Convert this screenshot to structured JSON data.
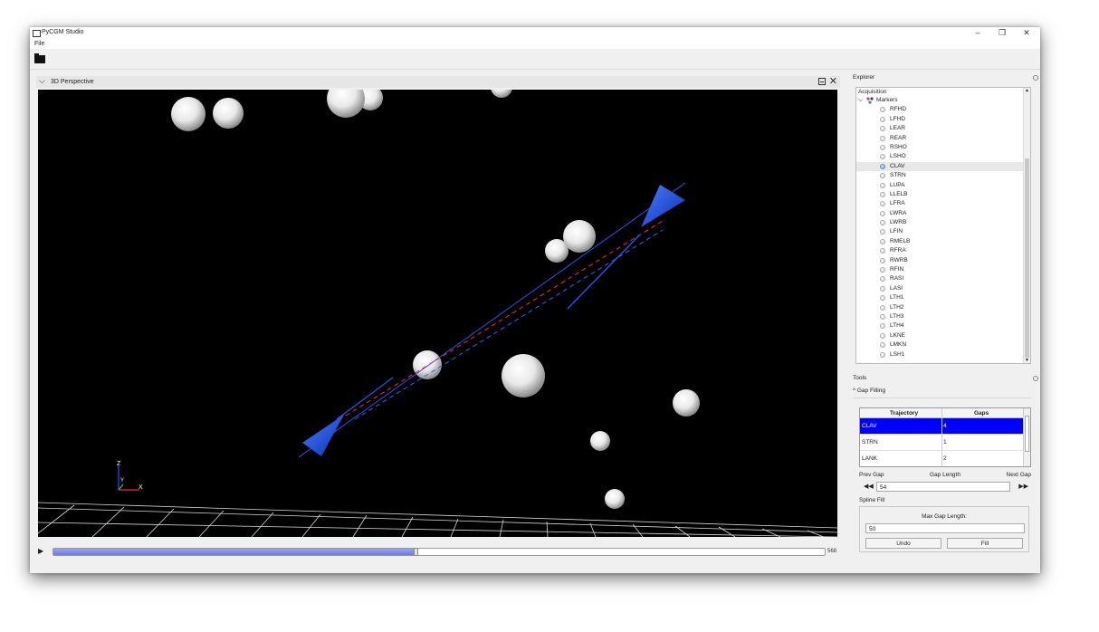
{
  "window": {
    "title": "PyCGM Studio",
    "controls": [
      "–",
      "❐",
      "✕"
    ]
  },
  "menu": {
    "file": "File"
  },
  "toolbar": {
    "open_icon": "folder-open-icon"
  },
  "viewport": {
    "title": "3D Perspective",
    "axes": {
      "z": "Z",
      "y": "Y",
      "x": "X"
    }
  },
  "playback": {
    "frame_count": "568",
    "progress": 0.47
  },
  "explorer": {
    "title": "Explorer",
    "root": "Acquisition",
    "group": "Markers",
    "selected": "CLAV",
    "markers": [
      "RFHD",
      "LFHD",
      "LEAR",
      "REAR",
      "RSHO",
      "LSHO",
      "CLAV",
      "STRN",
      "LUPA",
      "LLELB",
      "LFRA",
      "LWRA",
      "LWRB",
      "LFIN",
      "RMELB",
      "RFRA",
      "RWRB",
      "RFIN",
      "RASI",
      "LASI",
      "LTH1",
      "LTH2",
      "LTH3",
      "LTH4",
      "LKNE",
      "LMKN",
      "LSH1"
    ]
  },
  "tools": {
    "title": "Tools",
    "gap_filling": "Gap Filling",
    "table": {
      "headers": [
        "Trajectory",
        "Gaps"
      ],
      "rows": [
        {
          "trajectory": "CLAV",
          "gaps": "4",
          "selected": true
        },
        {
          "trajectory": "STRN",
          "gaps": "1",
          "selected": false
        },
        {
          "trajectory": "LANK",
          "gaps": "2",
          "selected": false
        }
      ]
    },
    "prev_gap": "Prev Gap",
    "gap_length": "Gap Length",
    "next_gap": "Next Gap",
    "gap_length_value": "54",
    "spline_fill": "Spline Fill",
    "max_gap_length_label": "Max Gap Length:",
    "max_gap_length_value": "50",
    "undo": "Undo",
    "fill": "Fill"
  }
}
